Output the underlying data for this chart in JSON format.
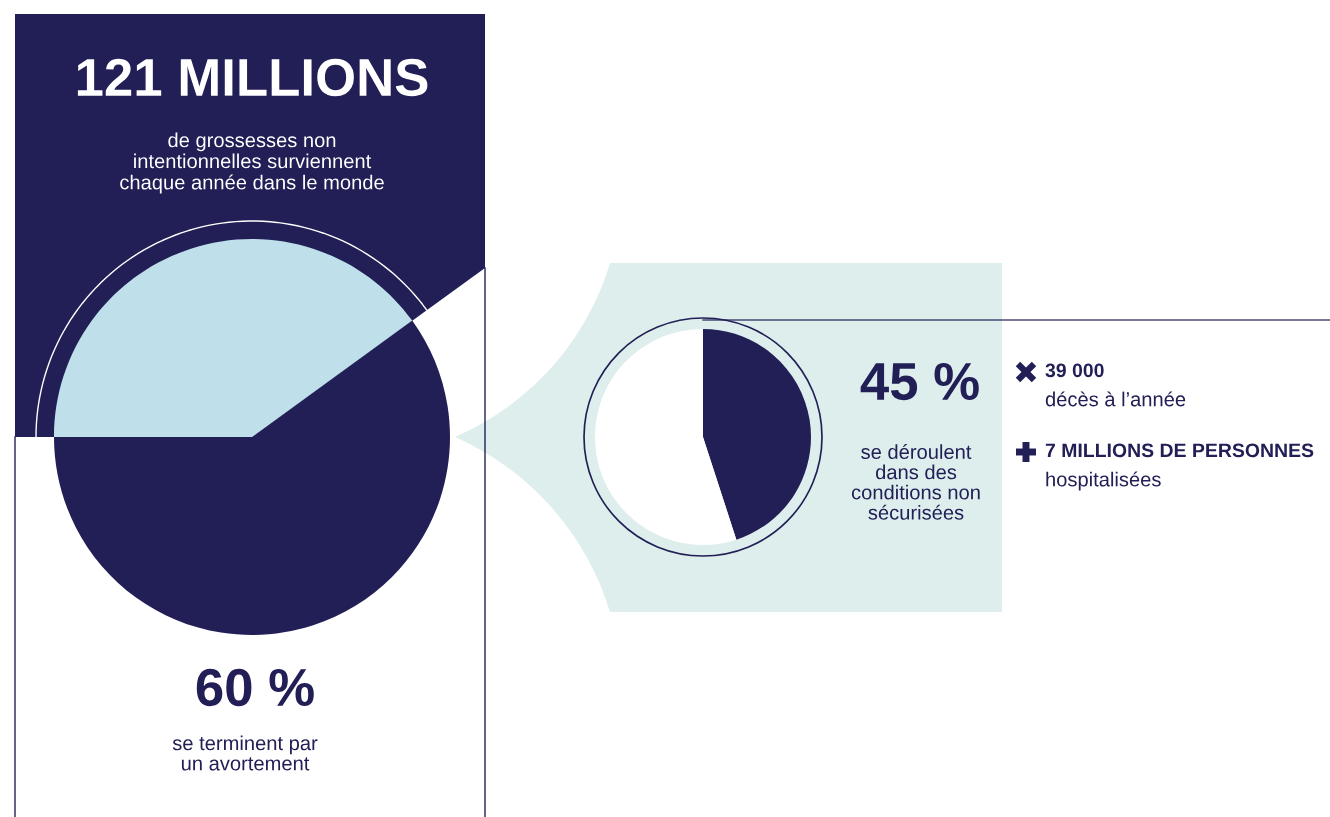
{
  "chart_data": [
    {
      "type": "pie",
      "title": "121 MILLIONS",
      "subtitle": "de grossesses non\nintentionnelles surviennent\nchaque année dans le monde",
      "categories": [
        "se terminent par\nun avortement",
        null
      ],
      "values": [
        60,
        40
      ],
      "colors": [
        "#211f56",
        "#bfe0eb"
      ],
      "value_labels": [
        "60 %",
        null
      ]
    },
    {
      "type": "pie",
      "categories": [
        "se déroulent\ndans des\nconditions non\nsécurisées",
        null
      ],
      "values": [
        45,
        55
      ],
      "colors": [
        "#211f56",
        "#ffffff"
      ],
      "value_labels": [
        "45 %",
        null
      ],
      "annotations": [
        "39 000",
        "décès à l’année",
        "7 MILLIONS DE PERSONNES",
        "hospitalisées"
      ]
    }
  ]
}
